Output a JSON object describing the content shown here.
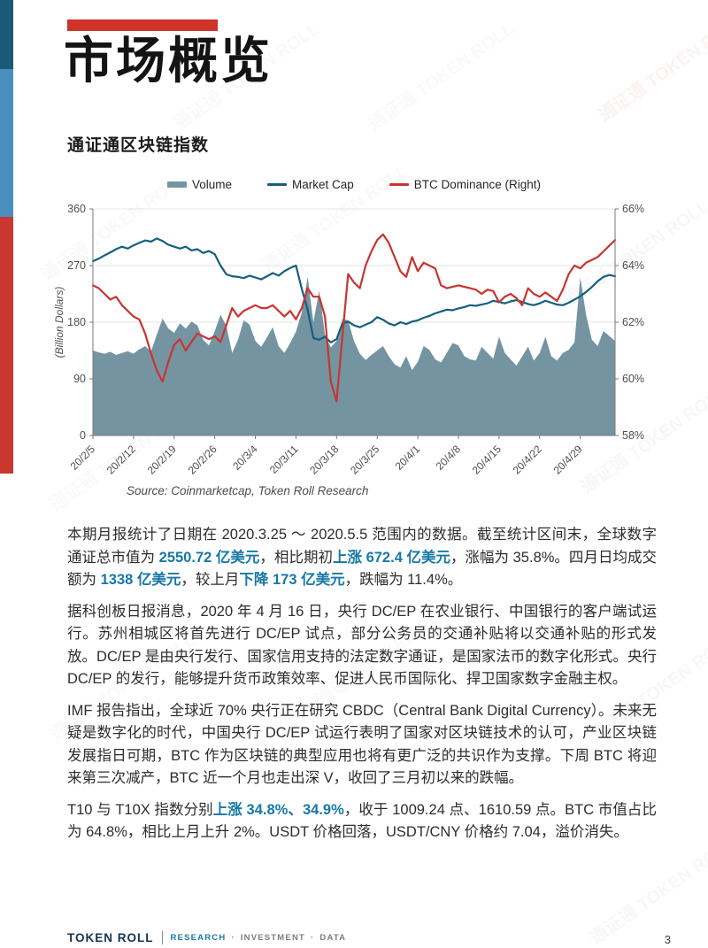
{
  "page": {
    "title": "市场概览",
    "subtitle": "通证通区块链指数",
    "watermark_text": "通证通 TOKEN ROLL"
  },
  "colors": {
    "title_bar_red": "#d03328",
    "stripe_navy": "#1a5a77",
    "stripe_blue": "#4b8fc1",
    "stripe_red": "#c9372f",
    "highlight_text": "#1878a8",
    "volume_fill": "#7494a1",
    "market_cap_line": "#15607d",
    "btc_dominance_line": "#c93430"
  },
  "chart_data": {
    "type": "area-line-combo",
    "title": "",
    "legend_position": "top",
    "grid": true,
    "n_points": 91,
    "x_tick_labels": [
      "20/2/5",
      "20/2/12",
      "20/2/19",
      "20/2/26",
      "20/3/4",
      "20/3/11",
      "20/3/18",
      "20/3/25",
      "20/4/1",
      "20/4/8",
      "20/4/15",
      "20/4/22",
      "20/4/29"
    ],
    "x_tick_indices": [
      0,
      7,
      14,
      21,
      28,
      35,
      42,
      49,
      56,
      63,
      70,
      77,
      84
    ],
    "left_axis": {
      "label": "(Billion Dollars)",
      "min": 0,
      "max": 360,
      "tick_values": [
        0,
        90,
        180,
        270,
        360
      ],
      "tick_labels": [
        "0",
        "90",
        "180",
        "270",
        "360"
      ]
    },
    "right_axis": {
      "min": 58,
      "max": 66,
      "tick_values": [
        58,
        60,
        62,
        64,
        66
      ],
      "tick_labels": [
        "58%",
        "60%",
        "62%",
        "64%",
        "66%"
      ]
    },
    "series": [
      {
        "name": "Volume",
        "type": "area",
        "axis": "left",
        "color": "#7494a1",
        "values": [
          135,
          132,
          130,
          133,
          128,
          131,
          134,
          130,
          137,
          142,
          133,
          160,
          186,
          170,
          163,
          178,
          170,
          181,
          175,
          152,
          143,
          166,
          192,
          174,
          131,
          152,
          183,
          176,
          150,
          141,
          156,
          172,
          142,
          131,
          147,
          165,
          195,
          252,
          180,
          230,
          160,
          140,
          150,
          185,
          183,
          150,
          130,
          120,
          128,
          135,
          142,
          126,
          113,
          108,
          126,
          104,
          117,
          142,
          136,
          121,
          116,
          131,
          147,
          143,
          126,
          121,
          119,
          141,
          131,
          122,
          157,
          131,
          121,
          111,
          126,
          141,
          119,
          131,
          157,
          126,
          119,
          131,
          136,
          148,
          251,
          192,
          152,
          142,
          166,
          158,
          150
        ]
      },
      {
        "name": "Market Cap",
        "type": "line",
        "axis": "left",
        "color": "#15607d",
        "values": [
          277,
          281,
          286,
          291,
          296,
          300,
          297,
          302,
          306,
          310,
          308,
          313,
          309,
          303,
          300,
          297,
          300,
          294,
          296,
          290,
          293,
          288,
          270,
          256,
          253,
          252,
          250,
          254,
          251,
          248,
          253,
          258,
          254,
          261,
          266,
          270,
          233,
          200,
          155,
          152,
          157,
          148,
          153,
          178,
          181,
          175,
          172,
          176,
          180,
          188,
          184,
          178,
          175,
          180,
          177,
          181,
          183,
          187,
          190,
          194,
          197,
          200,
          199,
          202,
          204,
          207,
          206,
          208,
          210,
          214,
          212,
          210,
          213,
          215,
          212,
          209,
          207,
          210,
          214,
          211,
          208,
          207,
          211,
          216,
          221,
          228,
          236,
          245,
          252,
          255,
          253
        ]
      },
      {
        "name": "BTC Dominance (Right)",
        "type": "line",
        "axis": "right",
        "color": "#c93430",
        "values": [
          63.3,
          63.2,
          63.0,
          62.8,
          62.9,
          62.6,
          62.4,
          62.2,
          62.1,
          61.6,
          60.9,
          60.3,
          59.9,
          60.6,
          61.2,
          61.4,
          61.0,
          61.3,
          61.6,
          61.5,
          61.4,
          61.5,
          61.3,
          61.9,
          62.5,
          62.2,
          62.4,
          62.5,
          62.6,
          62.5,
          62.5,
          62.6,
          62.4,
          62.2,
          62.4,
          62.1,
          62.5,
          63.2,
          62.9,
          62.9,
          62.2,
          59.9,
          59.2,
          61.5,
          63.7,
          63.4,
          63.2,
          64.0,
          64.5,
          64.9,
          65.1,
          64.8,
          64.3,
          63.8,
          63.6,
          64.3,
          63.8,
          64.1,
          64.0,
          63.9,
          63.3,
          63.2,
          63.25,
          63.3,
          63.25,
          63.2,
          63.15,
          63.0,
          63.15,
          63.1,
          62.7,
          62.9,
          63.0,
          62.85,
          62.6,
          63.2,
          63.0,
          62.9,
          63.05,
          62.9,
          62.75,
          63.15,
          63.7,
          64.0,
          63.9,
          64.1,
          64.2,
          64.3,
          64.5,
          64.7,
          64.9
        ]
      }
    ]
  },
  "source_note": "Source: Coinmarketcap, Token Roll Research",
  "paragraphs": [
    {
      "segments": [
        {
          "t": "本期月报统计了日期在 2020.3.25 ～ 2020.5.5 范围内的数据。截至统计区间末，全球数字通证总市值为 ",
          "h": false
        },
        {
          "t": "2550.72 亿美元",
          "h": true
        },
        {
          "t": "，相比期初",
          "h": false
        },
        {
          "t": "上涨 672.4 亿美元",
          "h": true
        },
        {
          "t": "，涨幅为 35.8%。四月日均成交额为 ",
          "h": false
        },
        {
          "t": "1338 亿美元",
          "h": true
        },
        {
          "t": "，较上月",
          "h": false
        },
        {
          "t": "下降 173 亿美元",
          "h": true
        },
        {
          "t": "，跌幅为 11.4%。",
          "h": false
        }
      ]
    },
    {
      "segments": [
        {
          "t": "据科创板日报消息，2020 年 4 月 16 日，央行 DC/EP 在农业银行、中国银行的客户端试运行。苏州相城区将首先进行 DC/EP 试点，部分公务员的交通补贴将以交通补贴的形式发放。DC/EP 是由央行发行、国家信用支持的法定数字通证，是国家法币的数字化形式。央行 DC/EP 的发行，能够提升货币政策效率、促进人民币国际化、捍卫国家数字金融主权。",
          "h": false
        }
      ]
    },
    {
      "segments": [
        {
          "t": "IMF 报告指出，全球近 70% 央行正在研究 CBDC（Central Bank Digital Currency）。未来无疑是数字化的时代，中国央行 DC/EP 试运行表明了国家对区块链技术的认可，产业区块链发展指日可期，BTC 作为区块链的典型应用也将有更广泛的共识作为支撑。下周 BTC 将迎来第三次减产，BTC 近一个月也走出深 V，收回了三月初以来的跌幅。",
          "h": false
        }
      ]
    },
    {
      "segments": [
        {
          "t": "T10 与 T10X 指数分别",
          "h": false
        },
        {
          "t": "上涨 34.8%、34.9%",
          "h": true
        },
        {
          "t": "，收于 1009.24 点、1610.59 点。BTC 市值占比为 64.8%，相比上月上升 2%。USDT 价格回落，USDT/CNY 价格约 7.04，溢价消失。",
          "h": false
        }
      ]
    }
  ],
  "footer": {
    "brand": "TOKEN ROLL",
    "tag_research": "RESEARCH",
    "tag_investment": "INVESTMENT",
    "tag_data": "DATA",
    "dot": "·",
    "page_number": "3"
  }
}
